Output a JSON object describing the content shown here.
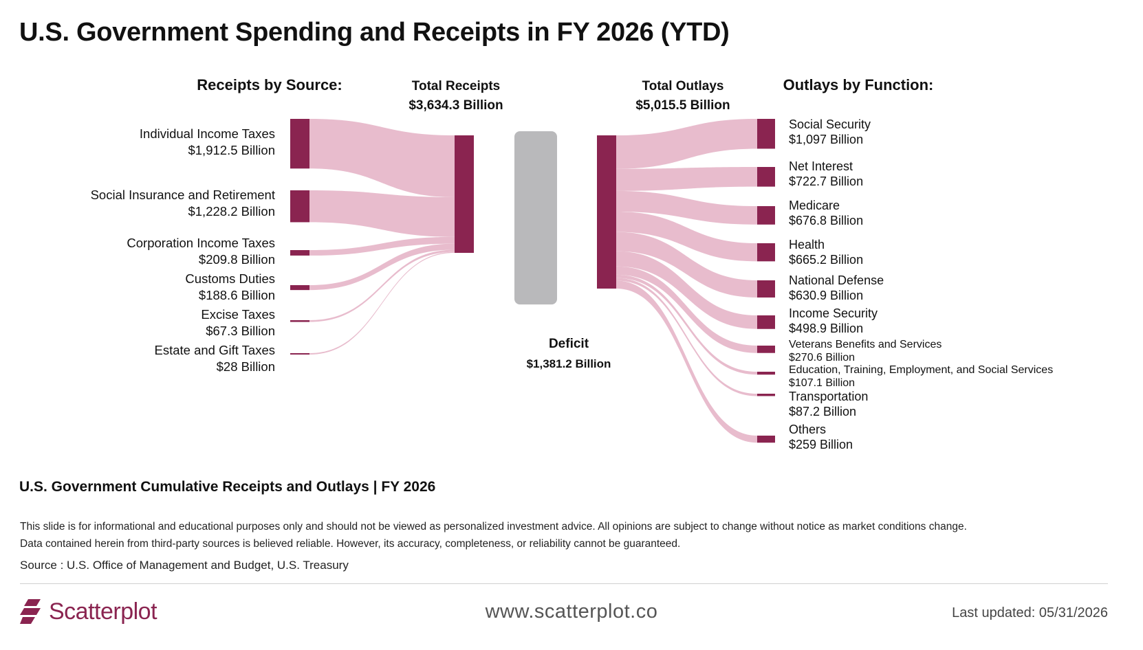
{
  "title": "U.S. Government Spending and Receipts in FY 2026 (YTD)",
  "subtitle": "U.S. Government Cumulative Receipts and Outlays | FY 2026",
  "disclaimer_line1": "This slide is for informational and educational purposes only and should not be viewed as personalized investment advice. All opinions are subject to change without notice as market conditions change.",
  "disclaimer_line2": "Data contained herein from third-party sources is believed reliable. However, its accuracy, completeness, or reliability cannot be guaranteed.",
  "source": "Source : U.S. Office of Management and Budget, U.S. Treasury",
  "footer": {
    "brand": "Scatterplot",
    "website": "www.scatterplot.co",
    "updated": "Last updated: 05/31/2026"
  },
  "colors": {
    "node": "#8a2450",
    "link": "#e8bccd",
    "deficit": "#b9b9bb"
  },
  "chart_data": {
    "type": "sankey",
    "unit": "Billion",
    "headers": {
      "receipts_by_source": "Receipts by Source:",
      "total_receipts": "Total Receipts",
      "total_receipts_value": "$3,634.3 Billion",
      "total_outlays": "Total Outlays",
      "total_outlays_value": "$5,015.5 Billion",
      "outlays_by_function": "Outlays by Function:"
    },
    "deficit": {
      "label": "Deficit",
      "value": 1381.2,
      "value_label": "$1,381.2 Billion"
    },
    "receipts_total": 3634.3,
    "outlays_total": 5015.5,
    "receipts": [
      {
        "name": "Individual Income Taxes",
        "value": 1912.5,
        "value_label": "$1,912.5 Billion"
      },
      {
        "name": "Social Insurance and Retirement",
        "value": 1228.2,
        "value_label": "$1,228.2 Billion"
      },
      {
        "name": "Corporation Income Taxes",
        "value": 209.8,
        "value_label": "$209.8 Billion"
      },
      {
        "name": "Customs Duties",
        "value": 188.6,
        "value_label": "$188.6 Billion"
      },
      {
        "name": "Excise Taxes",
        "value": 67.3,
        "value_label": "$67.3 Billion"
      },
      {
        "name": "Estate and Gift Taxes",
        "value": 28,
        "value_label": "$28 Billion"
      }
    ],
    "outlays": [
      {
        "name": "Social Security",
        "value": 1097,
        "value_label": "$1,097 Billion"
      },
      {
        "name": "Net Interest",
        "value": 722.7,
        "value_label": "$722.7 Billion"
      },
      {
        "name": "Medicare",
        "value": 676.8,
        "value_label": "$676.8 Billion"
      },
      {
        "name": "Health",
        "value": 665.2,
        "value_label": "$665.2 Billion"
      },
      {
        "name": "National Defense",
        "value": 630.9,
        "value_label": "$630.9 Billion"
      },
      {
        "name": "Income Security",
        "value": 498.9,
        "value_label": "$498.9 Billion"
      },
      {
        "name": "Veterans Benefits and Services",
        "value": 270.6,
        "value_label": "$270.6 Billion"
      },
      {
        "name": "Education, Training, Employment, and Social Services",
        "value": 107.1,
        "value_label": "$107.1 Billion"
      },
      {
        "name": "Transportation",
        "value": 87.2,
        "value_label": "$87.2 Billion"
      },
      {
        "name": "Others",
        "value": 259,
        "value_label": "$259 Billion"
      }
    ]
  }
}
